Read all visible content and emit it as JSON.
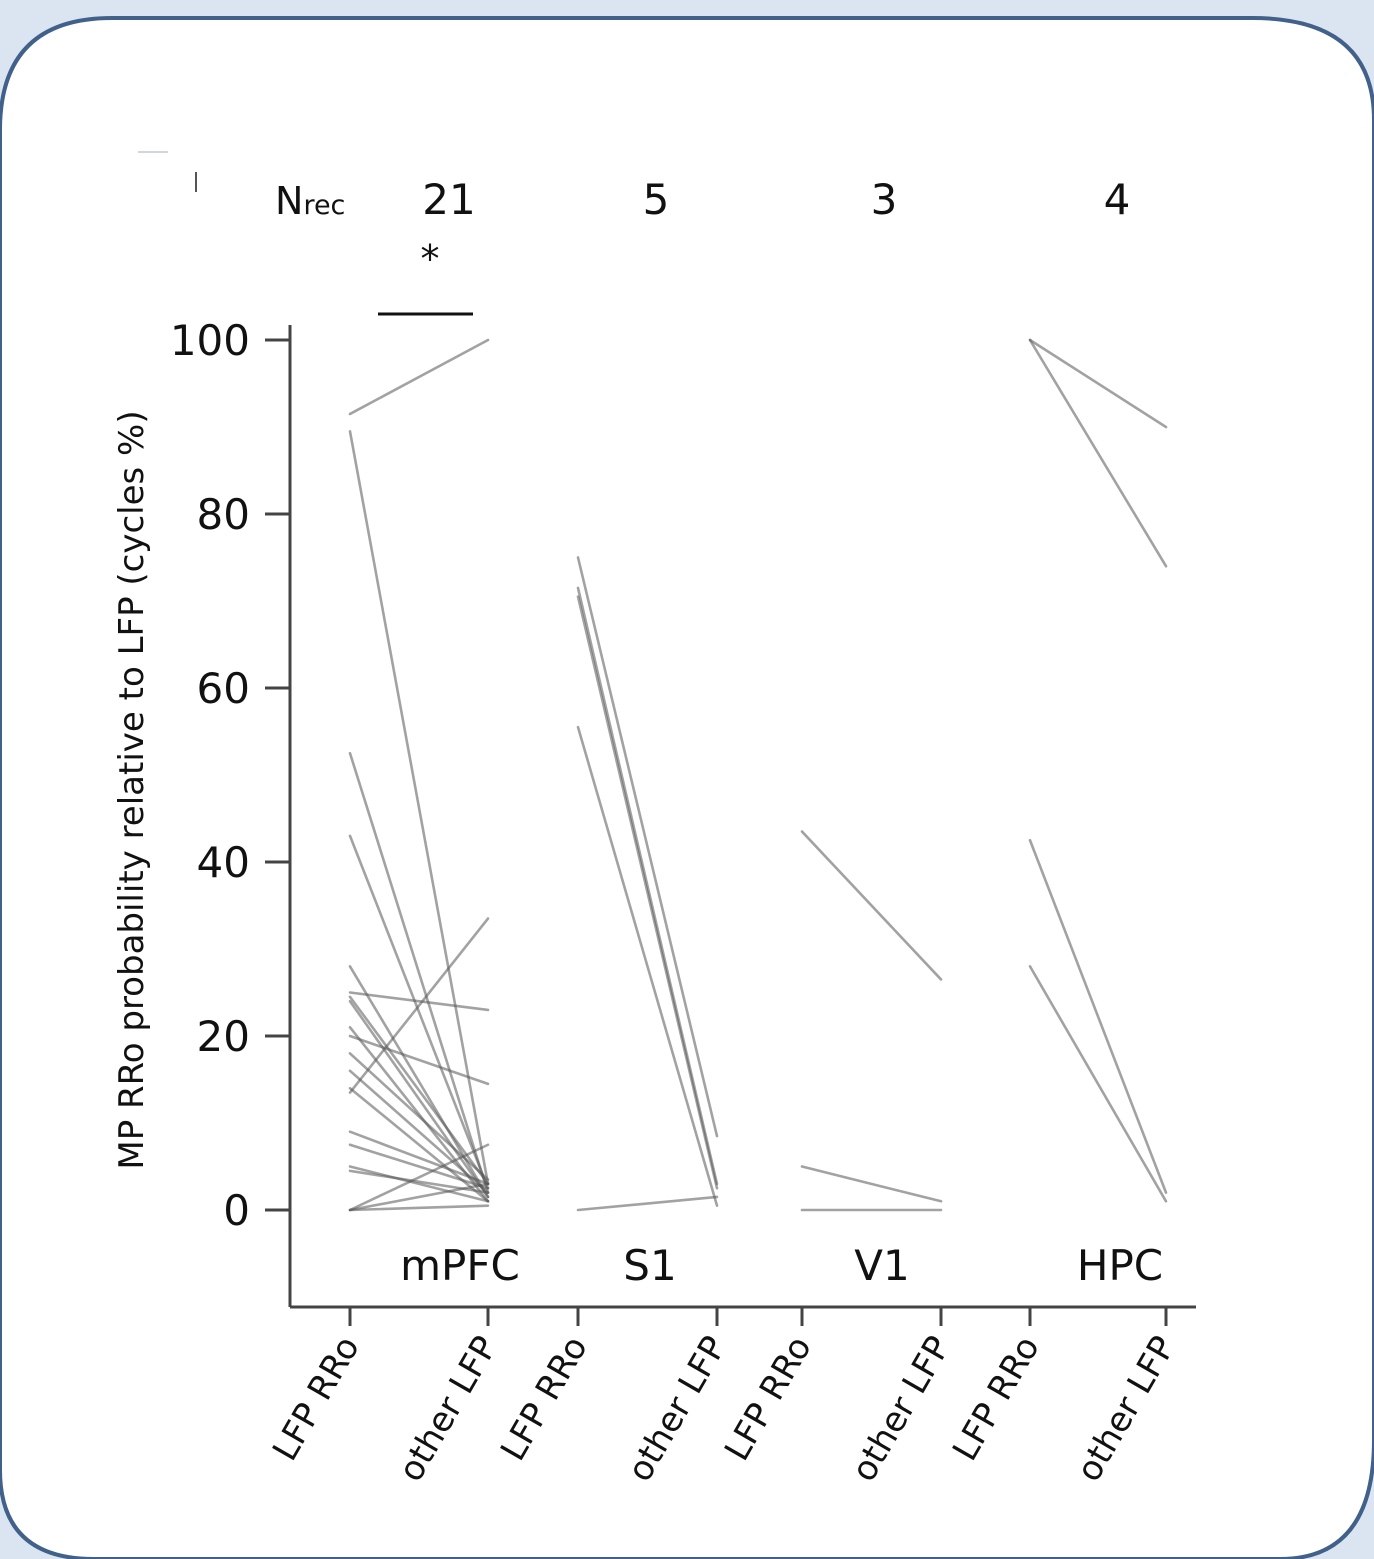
{
  "frame": {
    "background": "#dbe5f1",
    "panel": "#ffffff",
    "border": "#41608a"
  },
  "nrec_label": {
    "main": "N",
    "sub": "rec"
  },
  "significance": "*",
  "chart_data": {
    "type": "line",
    "ylabel": "MP RRo probability relative to LFP (cycles %)",
    "ylim": [
      -11,
      102
    ],
    "yticks": [
      0,
      20,
      40,
      60,
      80,
      100
    ],
    "x_tick_labels": [
      "LFP RRo",
      "other LFP",
      "LFP RRo",
      "other LFP",
      "LFP RRo",
      "other LFP",
      "LFP RRo",
      "other LFP"
    ],
    "line_color": "#555555",
    "groups": [
      {
        "name": "mPFC",
        "nrec": "21",
        "pairs": [
          [
            91.5,
            100
          ],
          [
            89.5,
            3
          ],
          [
            52.5,
            2
          ],
          [
            43,
            2.5
          ],
          [
            28,
            1.5
          ],
          [
            25,
            23
          ],
          [
            24.5,
            3
          ],
          [
            24,
            1.5
          ],
          [
            21,
            1
          ],
          [
            20,
            14.5
          ],
          [
            18,
            3.5
          ],
          [
            16,
            2
          ],
          [
            14,
            1
          ],
          [
            13.5,
            33.5
          ],
          [
            9,
            3
          ],
          [
            7.5,
            2.5
          ],
          [
            5,
            1
          ],
          [
            4.5,
            2
          ],
          [
            0,
            7.5
          ],
          [
            0,
            3
          ],
          [
            0,
            0.5
          ]
        ],
        "significant": true
      },
      {
        "name": "S1",
        "nrec": "5",
        "pairs": [
          [
            75,
            8.5
          ],
          [
            71.5,
            3
          ],
          [
            70.5,
            2.5
          ],
          [
            55.5,
            0.5
          ],
          [
            0,
            1.5
          ]
        ]
      },
      {
        "name": "V1",
        "nrec": "3",
        "pairs": [
          [
            43.5,
            26.5
          ],
          [
            5,
            1
          ],
          [
            0,
            0
          ]
        ]
      },
      {
        "name": "HPC",
        "nrec": "4",
        "pairs": [
          [
            100,
            90
          ],
          [
            100,
            74
          ],
          [
            42.5,
            2
          ],
          [
            28,
            1
          ]
        ]
      }
    ]
  }
}
